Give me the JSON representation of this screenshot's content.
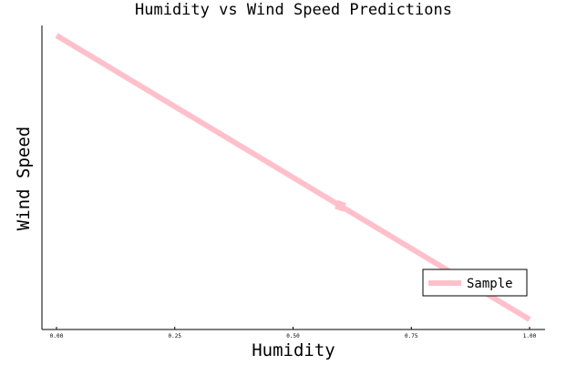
{
  "chart_data": {
    "type": "line",
    "title": "Humidity vs Wind Speed Predictions",
    "xlabel": "Humidity",
    "ylabel": "Wind Speed",
    "xlim": [
      0.0,
      1.0
    ],
    "x_ticks": [
      0.0,
      0.25,
      0.5,
      0.75,
      1.0
    ],
    "x_tick_labels": [
      "0.00",
      "0.25",
      "0.50",
      "0.75",
      "1.00"
    ],
    "y_ticks_visible": false,
    "grid": false,
    "legend_position": "bottom-right",
    "series": [
      {
        "name": "Sample",
        "color": "#ffc0cb",
        "x": [
          0.0,
          0.6,
          1.0
        ],
        "y": [
          1.0,
          0.4,
          0.0
        ]
      }
    ]
  }
}
